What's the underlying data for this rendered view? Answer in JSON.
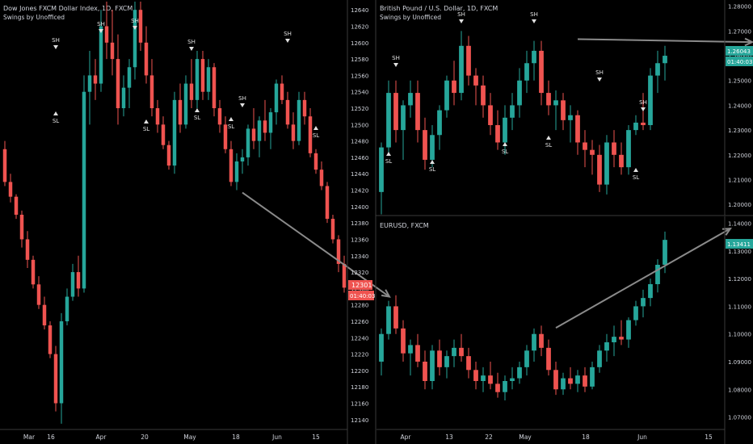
{
  "colors": {
    "background": "#000000",
    "up": "#26a69a",
    "down": "#ef5350",
    "arrow": "#8a8a8a",
    "marker": "#e0e0e0",
    "axis_text": "#d1d4dc",
    "separator": "#3a3a3a"
  },
  "chart_data": [
    {
      "type": "candlestick",
      "panel": "left",
      "title": "Dow Jones FXCM Dollar Index, 1D, FXCM",
      "indicator": "Swings by Unofficed",
      "ylim": [
        12128,
        12652
      ],
      "y_ticks": [
        "12140",
        "12160",
        "12180",
        "12200",
        "12220",
        "12240",
        "12260",
        "12280",
        "12300",
        "12320",
        "12340",
        "12360",
        "12380",
        "12400",
        "12420",
        "12440",
        "12460",
        "12480",
        "12500",
        "12520",
        "12540",
        "12560",
        "12580",
        "12600",
        "12620",
        "12640"
      ],
      "x_labels": [
        "Mar",
        "16",
        "Apr",
        "20",
        "May",
        "18",
        "Jun",
        "15"
      ],
      "last_price": "12301",
      "countdown": "01:40:03",
      "swing_labels": {
        "high": "SH",
        "low": "SL"
      },
      "arrow": {
        "from": [
          42,
          12417
        ],
        "to": [
          68,
          12290
        ]
      },
      "ohlc": [
        [
          12470,
          12480,
          12425,
          12430
        ],
        [
          12430,
          12440,
          12405,
          12412
        ],
        [
          12412,
          12415,
          12385,
          12390
        ],
        [
          12390,
          12395,
          12350,
          12360
        ],
        [
          12360,
          12370,
          12325,
          12335
        ],
        [
          12335,
          12340,
          12300,
          12305
        ],
        [
          12305,
          12315,
          12275,
          12280
        ],
        [
          12280,
          12290,
          12250,
          12255
        ],
        [
          12255,
          12260,
          12215,
          12220
        ],
        [
          12220,
          12230,
          12150,
          12160
        ],
        [
          12160,
          12270,
          12135,
          12260
        ],
        [
          12260,
          12300,
          12255,
          12290
        ],
        [
          12290,
          12330,
          12285,
          12320
        ],
        [
          12320,
          12340,
          12290,
          12300
        ],
        [
          12300,
          12560,
          12295,
          12540
        ],
        [
          12540,
          12590,
          12500,
          12560
        ],
        [
          12560,
          12580,
          12530,
          12550
        ],
        [
          12550,
          12640,
          12540,
          12620
        ],
        [
          12620,
          12650,
          12580,
          12600
        ],
        [
          12600,
          12640,
          12560,
          12580
        ],
        [
          12580,
          12610,
          12500,
          12520
        ],
        [
          12520,
          12560,
          12510,
          12545
        ],
        [
          12545,
          12580,
          12520,
          12570
        ],
        [
          12570,
          12650,
          12555,
          12640
        ],
        [
          12640,
          12650,
          12590,
          12600
        ],
        [
          12600,
          12620,
          12550,
          12560
        ],
        [
          12560,
          12580,
          12510,
          12520
        ],
        [
          12520,
          12530,
          12490,
          12500
        ],
        [
          12500,
          12510,
          12470,
          12475
        ],
        [
          12475,
          12480,
          12445,
          12450
        ],
        [
          12450,
          12540,
          12440,
          12530
        ],
        [
          12530,
          12550,
          12490,
          12500
        ],
        [
          12500,
          12560,
          12495,
          12550
        ],
        [
          12550,
          12580,
          12520,
          12530
        ],
        [
          12530,
          12590,
          12520,
          12580
        ],
        [
          12580,
          12590,
          12530,
          12540
        ],
        [
          12540,
          12580,
          12530,
          12570
        ],
        [
          12570,
          12575,
          12510,
          12520
        ],
        [
          12520,
          12530,
          12490,
          12500
        ],
        [
          12500,
          12510,
          12465,
          12470
        ],
        [
          12470,
          12480,
          12425,
          12430
        ],
        [
          12430,
          12465,
          12420,
          12455
        ],
        [
          12455,
          12470,
          12440,
          12460
        ],
        [
          12460,
          12500,
          12450,
          12495
        ],
        [
          12495,
          12520,
          12470,
          12480
        ],
        [
          12480,
          12510,
          12460,
          12505
        ],
        [
          12505,
          12530,
          12480,
          12490
        ],
        [
          12490,
          12520,
          12470,
          12515
        ],
        [
          12515,
          12555,
          12500,
          12550
        ],
        [
          12550,
          12560,
          12525,
          12530
        ],
        [
          12530,
          12540,
          12495,
          12500
        ],
        [
          12500,
          12515,
          12470,
          12480
        ],
        [
          12480,
          12540,
          12475,
          12530
        ],
        [
          12530,
          12540,
          12500,
          12510
        ],
        [
          12510,
          12520,
          12460,
          12465
        ],
        [
          12465,
          12470,
          12440,
          12445
        ],
        [
          12445,
          12455,
          12420,
          12425
        ],
        [
          12425,
          12430,
          12380,
          12385
        ],
        [
          12385,
          12390,
          12355,
          12360
        ],
        [
          12360,
          12365,
          12320,
          12330
        ],
        [
          12330,
          12340,
          12295,
          12301
        ]
      ]
    },
    {
      "type": "candlestick",
      "panel": "top-right",
      "title": "British Pound / U.S. Dollar, 1D, FXCM",
      "indicator": "Swings by Unofficed",
      "ylim": [
        1.1955,
        1.2825
      ],
      "y_ticks": [
        "1.20000",
        "1.21000",
        "1.22000",
        "1.23000",
        "1.24000",
        "1.25000",
        "1.26000",
        "1.27000",
        "1.28000"
      ],
      "last_price": "1.26043",
      "countdown": "01:40:03",
      "swing_labels": {
        "high": "SH",
        "low": "SL"
      },
      "arrow": {
        "from": [
          27,
          1.2667
        ],
        "to": [
          51,
          1.2655
        ]
      },
      "ohlc": [
        [
          1.205,
          1.225,
          1.196,
          1.223
        ],
        [
          1.223,
          1.25,
          1.22,
          1.245
        ],
        [
          1.245,
          1.25,
          1.225,
          1.23
        ],
        [
          1.23,
          1.242,
          1.218,
          1.24
        ],
        [
          1.24,
          1.25,
          1.235,
          1.245
        ],
        [
          1.245,
          1.25,
          1.225,
          1.23
        ],
        [
          1.23,
          1.235,
          1.214,
          1.218
        ],
        [
          1.218,
          1.232,
          1.215,
          1.228
        ],
        [
          1.228,
          1.24,
          1.222,
          1.238
        ],
        [
          1.238,
          1.252,
          1.235,
          1.25
        ],
        [
          1.25,
          1.258,
          1.24,
          1.245
        ],
        [
          1.245,
          1.27,
          1.242,
          1.264
        ],
        [
          1.264,
          1.268,
          1.248,
          1.252
        ],
        [
          1.252,
          1.255,
          1.24,
          1.248
        ],
        [
          1.248,
          1.252,
          1.235,
          1.24
        ],
        [
          1.24,
          1.245,
          1.228,
          1.232
        ],
        [
          1.232,
          1.238,
          1.222,
          1.225
        ],
        [
          1.225,
          1.24,
          1.22,
          1.235
        ],
        [
          1.235,
          1.245,
          1.23,
          1.24
        ],
        [
          1.24,
          1.255,
          1.235,
          1.25
        ],
        [
          1.25,
          1.262,
          1.245,
          1.257
        ],
        [
          1.257,
          1.266,
          1.25,
          1.262
        ],
        [
          1.262,
          1.266,
          1.24,
          1.245
        ],
        [
          1.245,
          1.25,
          1.236,
          1.24
        ],
        [
          1.24,
          1.246,
          1.23,
          1.242
        ],
        [
          1.242,
          1.245,
          1.23,
          1.234
        ],
        [
          1.234,
          1.24,
          1.225,
          1.236
        ],
        [
          1.236,
          1.238,
          1.22,
          1.225
        ],
        [
          1.225,
          1.23,
          1.215,
          1.222
        ],
        [
          1.222,
          1.226,
          1.212,
          1.22
        ],
        [
          1.22,
          1.224,
          1.205,
          1.208
        ],
        [
          1.208,
          1.228,
          1.204,
          1.225
        ],
        [
          1.225,
          1.23,
          1.215,
          1.22
        ],
        [
          1.22,
          1.225,
          1.212,
          1.215
        ],
        [
          1.215,
          1.232,
          1.212,
          1.23
        ],
        [
          1.23,
          1.236,
          1.228,
          1.233
        ],
        [
          1.233,
          1.245,
          1.23,
          1.232
        ],
        [
          1.232,
          1.255,
          1.23,
          1.252
        ],
        [
          1.252,
          1.262,
          1.245,
          1.257
        ],
        [
          1.257,
          1.264,
          1.25,
          1.26
        ]
      ]
    },
    {
      "type": "candlestick",
      "panel": "bottom-right",
      "title": "EURUSD, FXCM",
      "ylim": [
        1.0655,
        1.1425
      ],
      "y_ticks": [
        "1.07000",
        "1.08000",
        "1.09000",
        "1.10000",
        "1.11000",
        "1.12000",
        "1.13000",
        "1.14000"
      ],
      "x_labels": [
        "Apr",
        "13",
        "22",
        "May",
        "18",
        "Jun",
        "15"
      ],
      "last_price": "1.13411",
      "arrow": {
        "from": [
          24,
          1.1022
        ],
        "to": [
          48,
          1.1381
        ]
      },
      "ohlc": [
        [
          1.09,
          1.102,
          1.085,
          1.1
        ],
        [
          1.1,
          1.112,
          1.098,
          1.11
        ],
        [
          1.11,
          1.114,
          1.1,
          1.102
        ],
        [
          1.102,
          1.105,
          1.09,
          1.093
        ],
        [
          1.093,
          1.098,
          1.085,
          1.096
        ],
        [
          1.096,
          1.1,
          1.088,
          1.09
        ],
        [
          1.09,
          1.094,
          1.08,
          1.083
        ],
        [
          1.083,
          1.096,
          1.08,
          1.094
        ],
        [
          1.094,
          1.098,
          1.085,
          1.088
        ],
        [
          1.088,
          1.094,
          1.084,
          1.092
        ],
        [
          1.092,
          1.098,
          1.088,
          1.095
        ],
        [
          1.095,
          1.1,
          1.09,
          1.092
        ],
        [
          1.092,
          1.095,
          1.084,
          1.087
        ],
        [
          1.087,
          1.09,
          1.08,
          1.083
        ],
        [
          1.083,
          1.088,
          1.079,
          1.085
        ],
        [
          1.085,
          1.09,
          1.08,
          1.082
        ],
        [
          1.082,
          1.086,
          1.077,
          1.079
        ],
        [
          1.079,
          1.085,
          1.076,
          1.083
        ],
        [
          1.083,
          1.088,
          1.08,
          1.084
        ],
        [
          1.084,
          1.09,
          1.082,
          1.088
        ],
        [
          1.088,
          1.096,
          1.085,
          1.094
        ],
        [
          1.094,
          1.102,
          1.09,
          1.1
        ],
        [
          1.1,
          1.103,
          1.092,
          1.095
        ],
        [
          1.095,
          1.098,
          1.085,
          1.087
        ],
        [
          1.087,
          1.09,
          1.078,
          1.08
        ],
        [
          1.08,
          1.086,
          1.078,
          1.084
        ],
        [
          1.084,
          1.088,
          1.08,
          1.082
        ],
        [
          1.082,
          1.087,
          1.079,
          1.085
        ],
        [
          1.085,
          1.088,
          1.079,
          1.081
        ],
        [
          1.081,
          1.09,
          1.08,
          1.088
        ],
        [
          1.088,
          1.096,
          1.086,
          1.094
        ],
        [
          1.094,
          1.1,
          1.09,
          1.097
        ],
        [
          1.097,
          1.103,
          1.092,
          1.099
        ],
        [
          1.099,
          1.105,
          1.096,
          1.098
        ],
        [
          1.098,
          1.106,
          1.095,
          1.105
        ],
        [
          1.105,
          1.112,
          1.103,
          1.11
        ],
        [
          1.11,
          1.116,
          1.106,
          1.113
        ],
        [
          1.113,
          1.12,
          1.11,
          1.118
        ],
        [
          1.118,
          1.127,
          1.115,
          1.125
        ],
        [
          1.125,
          1.137,
          1.122,
          1.134
        ]
      ]
    }
  ]
}
